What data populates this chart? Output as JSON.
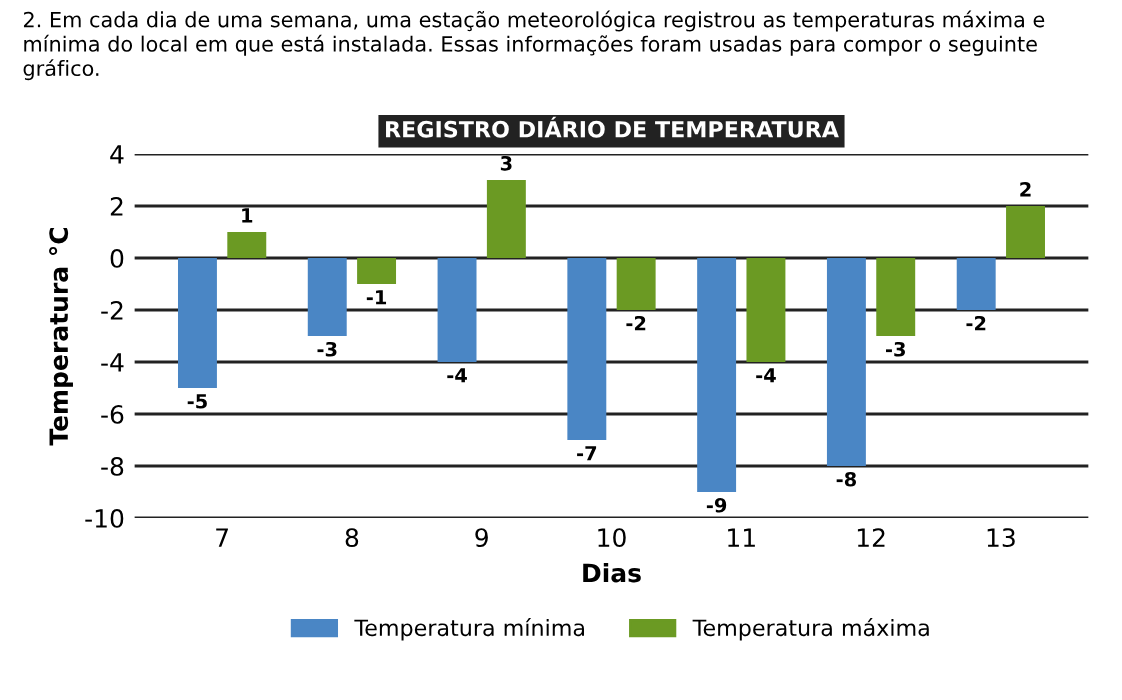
{
  "chart_data": {
    "type": "bar",
    "title": "REGISTRO DIÁRIO DE TEMPERATURA",
    "xlabel": "Dias",
    "ylabel": "Temperatura °C",
    "annotations": [
      "2. Em cada dia de uma semana, uma estação meteorológica registrou as temperaturas máxima e mínima do local em que está instalada. Essas informações foram usadas para compor o seguinte gráfico."
    ],
    "categories": [
      "7",
      "8",
      "9",
      "10",
      "11",
      "12",
      "13"
    ],
    "series": [
      {
        "name": "Temperatura mínima",
        "color": "#4a86c5",
        "values": [
          -5,
          -3,
          -4,
          -7,
          -9,
          -8,
          -2
        ]
      },
      {
        "name": "Temperatura máxima",
        "color": "#6b9a23",
        "values": [
          1,
          -1,
          3,
          -2,
          -4,
          -3,
          2
        ]
      }
    ],
    "ylim": [
      -10,
      4
    ],
    "yticks": [
      -10,
      -8,
      -6,
      -4,
      -2,
      0,
      2,
      4
    ],
    "grid": "y",
    "legend": "bottom",
    "data_labels": true
  }
}
